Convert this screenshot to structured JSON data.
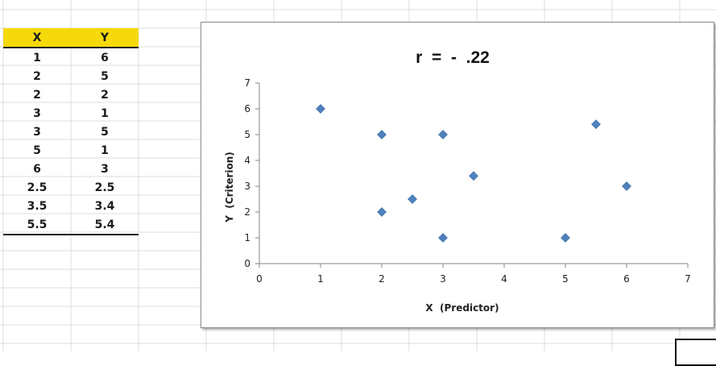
{
  "table": {
    "headers": [
      "X",
      "Y"
    ],
    "rows": [
      [
        "1",
        "6"
      ],
      [
        "2",
        "5"
      ],
      [
        "2",
        "2"
      ],
      [
        "3",
        "1"
      ],
      [
        "3",
        "5"
      ],
      [
        "5",
        "1"
      ],
      [
        "6",
        "3"
      ],
      [
        "2.5",
        "2.5"
      ],
      [
        "3.5",
        "3.4"
      ],
      [
        "5.5",
        "5.4"
      ]
    ],
    "header_color": "#f5d90a"
  },
  "chart_data": {
    "type": "scatter",
    "title": "r  =  -  .22",
    "xlabel": "X  (Predictor)",
    "ylabel": "Y  (Criterion)",
    "xlim": [
      0,
      7
    ],
    "ylim": [
      0,
      7
    ],
    "xticks": [
      "0",
      "1",
      "2",
      "3",
      "4",
      "5",
      "6",
      "7"
    ],
    "yticks": [
      "0",
      "1",
      "2",
      "3",
      "4",
      "5",
      "6",
      "7"
    ],
    "grid": false,
    "legend": "none",
    "marker": "diamond",
    "marker_color": "#4f81bd",
    "x": [
      1,
      2,
      2,
      3,
      3,
      5,
      6,
      2.5,
      3.5,
      5.5
    ],
    "y": [
      6,
      5,
      2,
      1,
      5,
      1,
      3,
      2.5,
      3.4,
      5.4
    ]
  }
}
